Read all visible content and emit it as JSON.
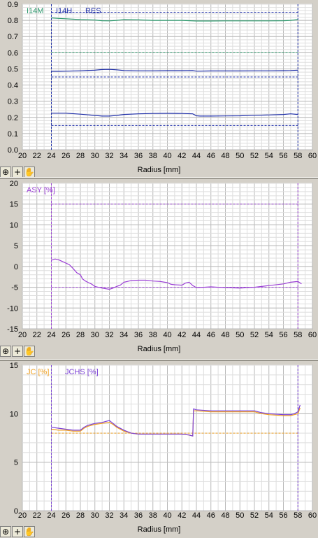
{
  "charts": [
    {
      "type": "line",
      "xlabel": "Radius [mm]",
      "xlim": [
        20,
        60
      ],
      "xticks": [
        20,
        22,
        24,
        26,
        28,
        30,
        32,
        34,
        36,
        38,
        40,
        42,
        44,
        46,
        48,
        50,
        52,
        54,
        56,
        58,
        60
      ],
      "ylim": [
        0.0,
        0.9
      ],
      "yticks": [
        "0.0",
        "0.1",
        "0.2",
        "0.3",
        "0.4",
        "0.5",
        "0.6",
        "0.7",
        "0.8",
        "0.9"
      ],
      "ytick_values": [
        0.0,
        0.1,
        0.2,
        0.3,
        0.4,
        0.5,
        0.6,
        0.7,
        0.8,
        0.9
      ],
      "legend": [
        {
          "label": "I14M",
          "color": "#2e9a6e"
        },
        {
          "label": "I14H",
          "color": "#1f2fa8"
        },
        {
          "label": "RES",
          "color": "#1f2fa8"
        }
      ],
      "series": [
        {
          "name": "I14M",
          "color": "#2e9a6e",
          "x": [
            24,
            25,
            26,
            28,
            30,
            31,
            32,
            33,
            34,
            36,
            38,
            40,
            42,
            44,
            46,
            48,
            50,
            52,
            54,
            56,
            57,
            58
          ],
          "y": [
            0.815,
            0.812,
            0.81,
            0.805,
            0.802,
            0.798,
            0.797,
            0.8,
            0.805,
            0.803,
            0.8,
            0.8,
            0.8,
            0.796,
            0.796,
            0.797,
            0.797,
            0.797,
            0.797,
            0.798,
            0.8,
            0.805
          ]
        },
        {
          "name": "I14H",
          "color": "#1f2fa8",
          "x": [
            24,
            25,
            26,
            28,
            30,
            31,
            32,
            33,
            34,
            36,
            38,
            40,
            42,
            43.5,
            44,
            46,
            48,
            50,
            52,
            54,
            56,
            57,
            58
          ],
          "y": [
            0.485,
            0.485,
            0.486,
            0.488,
            0.492,
            0.496,
            0.497,
            0.494,
            0.49,
            0.488,
            0.488,
            0.489,
            0.489,
            0.49,
            0.486,
            0.487,
            0.487,
            0.487,
            0.488,
            0.488,
            0.489,
            0.49,
            0.492
          ]
        },
        {
          "name": "RES",
          "color": "#1f2fa8",
          "x": [
            24,
            25,
            26,
            28,
            30,
            31,
            32,
            33,
            34,
            36,
            38,
            40,
            42,
            43.5,
            44,
            44.5,
            46,
            48,
            50,
            52,
            54,
            56,
            57,
            58
          ],
          "y": [
            0.226,
            0.226,
            0.226,
            0.22,
            0.212,
            0.208,
            0.208,
            0.212,
            0.218,
            0.222,
            0.224,
            0.225,
            0.224,
            0.222,
            0.21,
            0.208,
            0.208,
            0.209,
            0.21,
            0.213,
            0.215,
            0.218,
            0.222,
            0.218
          ]
        }
      ],
      "reference_lines": [
        {
          "y": 0.85,
          "color": "#1f2fa8"
        },
        {
          "y": 0.6,
          "color": "#2e9a6e"
        },
        {
          "y": 0.45,
          "color": "#1f2fa8"
        },
        {
          "y": 0.15,
          "color": "#1f2fa8"
        }
      ],
      "vlines": [
        24,
        58
      ],
      "vline_color": "#1f2fa8",
      "grid": true
    },
    {
      "type": "line",
      "xlabel": "Radius [mm]",
      "xlim": [
        20,
        60
      ],
      "xticks": [
        20,
        22,
        24,
        26,
        28,
        30,
        32,
        34,
        36,
        38,
        40,
        42,
        44,
        46,
        48,
        50,
        52,
        54,
        56,
        58,
        60
      ],
      "ylim": [
        -15,
        20
      ],
      "yticks": [
        "-15",
        "-10",
        "-5",
        "0",
        "5",
        "10",
        "15",
        "20"
      ],
      "ytick_values": [
        -15,
        -10,
        -5,
        0,
        5,
        10,
        15,
        20
      ],
      "legend": [
        {
          "label": "ASY [%]",
          "color": "#9b3fd6"
        }
      ],
      "series": [
        {
          "name": "ASY [%]",
          "color": "#9b3fd6",
          "x": [
            24,
            24.5,
            25,
            25.5,
            26,
            26.5,
            27,
            27.5,
            28,
            28.3,
            28.7,
            29,
            29.5,
            30,
            31,
            32,
            32.5,
            33,
            33.5,
            34,
            35,
            36,
            37,
            38,
            39,
            40,
            40.5,
            41,
            42,
            42.5,
            43,
            43.5,
            44,
            45,
            46,
            48,
            50,
            52,
            54,
            56,
            57,
            58,
            58.5
          ],
          "y": [
            1.5,
            1.8,
            1.6,
            1.2,
            0.8,
            0.4,
            -0.5,
            -1.5,
            -2.0,
            -3.0,
            -3.5,
            -3.8,
            -4.2,
            -4.8,
            -5.2,
            -5.5,
            -5.2,
            -4.8,
            -4.5,
            -3.8,
            -3.4,
            -3.3,
            -3.3,
            -3.5,
            -3.6,
            -3.9,
            -4.3,
            -4.4,
            -4.5,
            -4.0,
            -3.8,
            -4.6,
            -5.1,
            -5.0,
            -4.9,
            -5.1,
            -5.2,
            -5.0,
            -4.6,
            -4.2,
            -3.8,
            -3.6,
            -4.2
          ]
        }
      ],
      "reference_lines": [
        {
          "y": 15,
          "color": "#9b3fd6"
        },
        {
          "y": -5,
          "color": "#9b3fd6"
        }
      ],
      "vlines": [
        24,
        58
      ],
      "vline_color": "#9b3fd6",
      "grid": true
    },
    {
      "type": "line",
      "xlabel": "Radius [mm]",
      "xlim": [
        20,
        60
      ],
      "xticks": [
        20,
        22,
        24,
        26,
        28,
        30,
        32,
        34,
        36,
        38,
        40,
        42,
        44,
        46,
        48,
        50,
        52,
        54,
        56,
        58,
        60
      ],
      "ylim": [
        0,
        15
      ],
      "yticks": [
        "0",
        "5",
        "10",
        "15"
      ],
      "ytick_values": [
        0,
        5,
        10,
        15
      ],
      "legend": [
        {
          "label": "JC [%]",
          "color": "#f0a020"
        },
        {
          "label": "JCHS [%]",
          "color": "#7a3fd6"
        }
      ],
      "series": [
        {
          "name": "JC [%]",
          "color": "#f0a020",
          "x": [
            24,
            25,
            26,
            27,
            28,
            28.5,
            29,
            30,
            31,
            32,
            32.5,
            33,
            34,
            35,
            36,
            38,
            40,
            42,
            43,
            43.5,
            43.6,
            44,
            46,
            48,
            50,
            52,
            53,
            54,
            56,
            57,
            57.5,
            58,
            58.3
          ],
          "y": [
            8.4,
            8.3,
            8.3,
            8.2,
            8.2,
            8.5,
            8.7,
            8.9,
            9.0,
            9.1,
            8.9,
            8.6,
            8.2,
            8.0,
            7.9,
            7.9,
            7.9,
            7.9,
            7.8,
            7.7,
            10.3,
            10.3,
            10.2,
            10.2,
            10.2,
            10.2,
            10.0,
            9.9,
            9.8,
            9.8,
            9.9,
            10.0,
            10.6
          ]
        },
        {
          "name": "JCHS [%]",
          "color": "#7a3fd6",
          "x": [
            24,
            25,
            26,
            27,
            28,
            28.5,
            29,
            30,
            31,
            32,
            32.5,
            33,
            34,
            35,
            36,
            38,
            40,
            42,
            43,
            43.5,
            43.6,
            44,
            46,
            48,
            50,
            52,
            53,
            54,
            56,
            57,
            57.5,
            58,
            58.3
          ],
          "y": [
            8.6,
            8.5,
            8.4,
            8.3,
            8.3,
            8.6,
            8.8,
            9.0,
            9.1,
            9.3,
            9.0,
            8.7,
            8.3,
            8.0,
            7.9,
            7.9,
            7.9,
            7.9,
            7.8,
            7.7,
            10.5,
            10.4,
            10.3,
            10.3,
            10.3,
            10.3,
            10.1,
            10.0,
            9.9,
            9.9,
            10.0,
            10.2,
            10.9
          ]
        }
      ],
      "reference_lines": [
        {
          "y": 8,
          "color": "#f0a020"
        }
      ],
      "vlines": [
        24,
        58
      ],
      "vline_color": "#7a3fd6",
      "grid": true
    }
  ],
  "toolbar": {
    "zoom_icon": "zoom-icon",
    "crosshair_icon": "crosshair-icon",
    "hand_icon": "hand-icon"
  }
}
